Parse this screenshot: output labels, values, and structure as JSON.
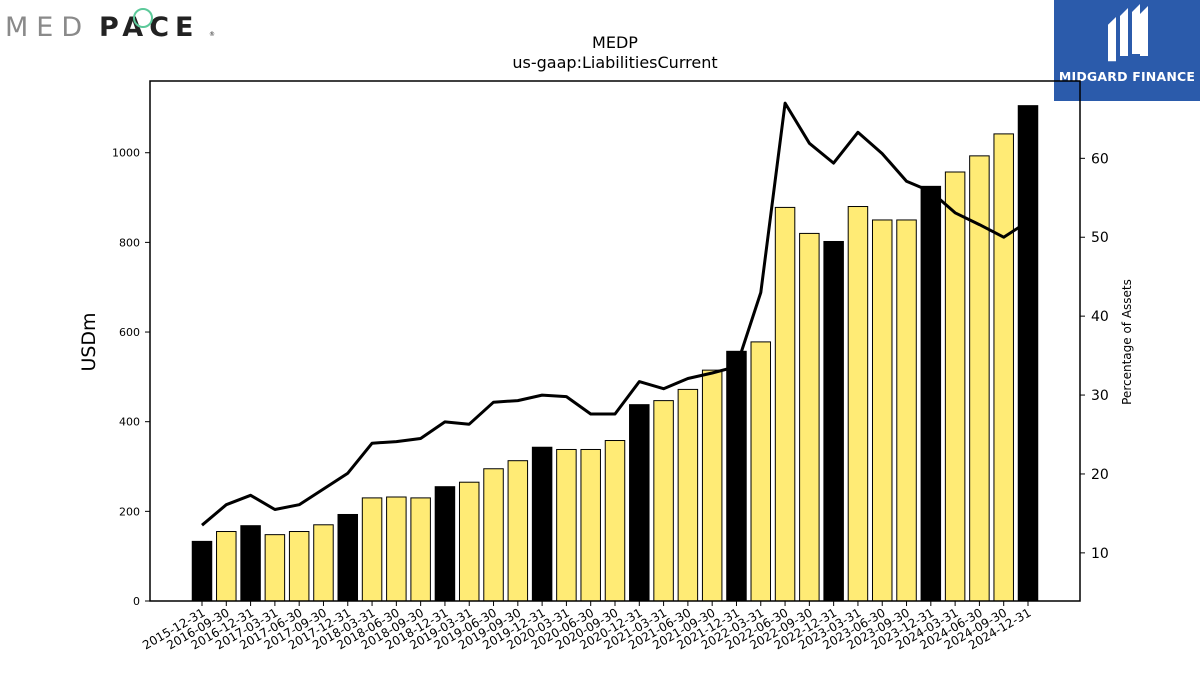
{
  "brand": {
    "medpace_logo": "MEDPACE",
    "midgard_label": "MIDGARD FINANCE",
    "bar_color_annual": "#000000",
    "bar_color_quarterly": "#ffeb75",
    "line_color": "#000000"
  },
  "chart_data": {
    "type": "bar",
    "title": "MEDP",
    "subtitle": "us-gaap:LiabilitiesCurrent",
    "ylabel": "USDm",
    "y2label": "Percentage of Assets",
    "ylim": [
      0,
      1160
    ],
    "y2lim": [
      3.9,
      69.8
    ],
    "yticks": [
      0,
      200,
      400,
      600,
      800,
      1000
    ],
    "y2ticks": [
      10,
      20,
      30,
      40,
      50,
      60
    ],
    "grid": false,
    "categories": [
      "2015-12-31",
      "2016-09-30",
      "2016-12-31",
      "2017-03-31",
      "2017-06-30",
      "2017-09-30",
      "2017-12-31",
      "2018-03-31",
      "2018-06-30",
      "2018-09-30",
      "2018-12-31",
      "2019-03-31",
      "2019-06-30",
      "2019-09-30",
      "2019-12-31",
      "2020-03-31",
      "2020-06-30",
      "2020-09-30",
      "2020-12-31",
      "2021-03-31",
      "2021-06-30",
      "2021-09-30",
      "2021-12-31",
      "2022-03-31",
      "2022-06-30",
      "2022-09-30",
      "2022-12-31",
      "2023-03-31",
      "2023-06-30",
      "2023-09-30",
      "2023-12-31",
      "2024-03-31",
      "2024-06-30",
      "2024-09-30",
      "2024-12-31"
    ],
    "series": [
      {
        "type": "bar",
        "axis": "left",
        "values": [
          133,
          155,
          168,
          148,
          155,
          170,
          193,
          230,
          232,
          230,
          255,
          265,
          295,
          313,
          343,
          338,
          338,
          358,
          438,
          447,
          472,
          515,
          557,
          578,
          878,
          820,
          802,
          880,
          850,
          850,
          925,
          957,
          993,
          1042,
          1105
        ],
        "annual": [
          true,
          false,
          true,
          false,
          false,
          false,
          true,
          false,
          false,
          false,
          true,
          false,
          false,
          false,
          true,
          false,
          false,
          false,
          true,
          false,
          false,
          false,
          true,
          false,
          false,
          false,
          true,
          false,
          false,
          false,
          true,
          false,
          false,
          false,
          true
        ]
      },
      {
        "type": "line",
        "axis": "right",
        "values": [
          13.5,
          16.1,
          17.3,
          15.5,
          16.1,
          18.1,
          20.1,
          23.9,
          24.1,
          24.5,
          26.6,
          26.3,
          29.1,
          29.3,
          30.0,
          29.8,
          27.6,
          27.6,
          31.7,
          30.8,
          32.1,
          32.8,
          33.6,
          43.0,
          67.0,
          61.9,
          59.4,
          63.3,
          60.6,
          57.1,
          55.8,
          53.1,
          51.6,
          50.0,
          52.0
        ]
      }
    ]
  }
}
